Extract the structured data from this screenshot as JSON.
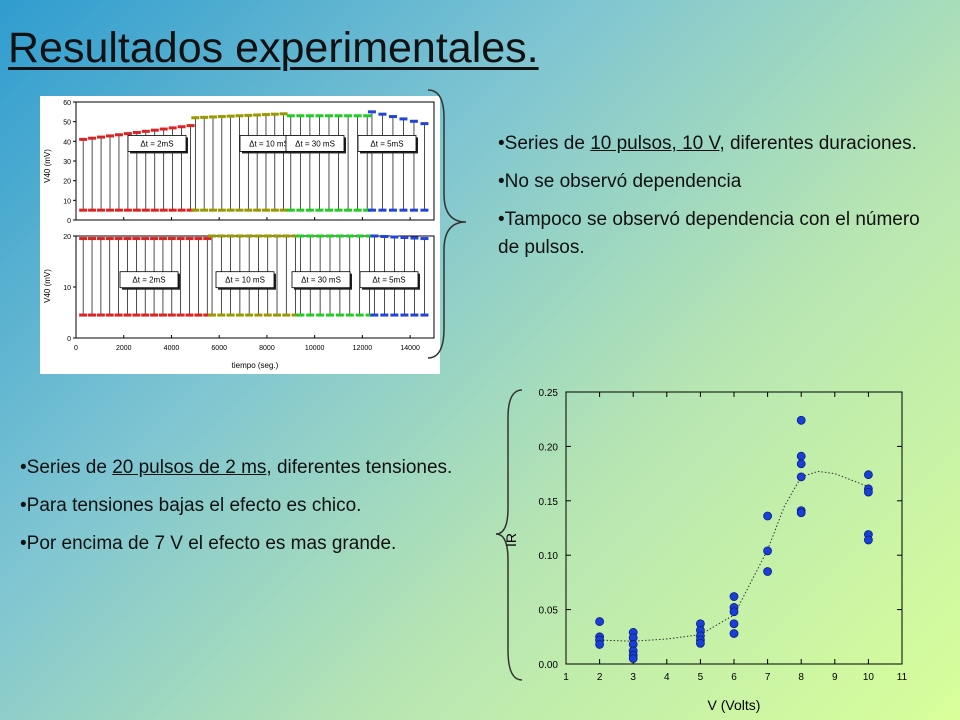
{
  "title": "Resultados experimentales.",
  "top_bullets": [
    {
      "prefix": "•Series de ",
      "underlined": "10 pulsos, 10 V",
      "suffix": ", diferentes duraciones."
    },
    {
      "text": "•No se observó dependencia"
    },
    {
      "text": "•Tampoco se observó dependencia con el número de pulsos."
    }
  ],
  "bottom_bullets": [
    {
      "prefix": "•Series de ",
      "underlined": "20 pulsos de 2 ms",
      "suffix": ", diferentes tensiones."
    },
    {
      "text": "•Para tensiones bajas el efecto es chico."
    },
    {
      "text": "•Por encima de 7 V el efecto es mas grande."
    }
  ],
  "chart_data": [
    {
      "type": "scatter",
      "xlabel": "tiempo (seg.)",
      "panels": [
        {
          "ylabel": "V40 (mV)",
          "ylim": [
            0,
            60
          ],
          "yticks": [
            0,
            10,
            20,
            30,
            40,
            50,
            60
          ],
          "annotations": [
            "Δt = 2mS",
            "Δt = 10 mS",
            "Δt = 30 mS",
            "Δt = 5mS"
          ],
          "segments": [
            {
              "name": "Δt = 2mS",
              "color": "#dd2222",
              "x_range": [
                300,
                4800
              ],
              "high": [
                41,
                48
              ],
              "low": 5
            },
            {
              "name": "Δt = 10 mS",
              "color": "#999900",
              "x_range": [
                5000,
                8700
              ],
              "high": [
                52,
                54
              ],
              "low": 5
            },
            {
              "name": "Δt = 30 mS",
              "color": "#22cc22",
              "x_range": [
                9000,
                12200
              ],
              "high": [
                53,
                53
              ],
              "low": 5
            },
            {
              "name": "Δt = 5mS",
              "color": "#2244dd",
              "x_range": [
                12400,
                14600
              ],
              "high": [
                55,
                49
              ],
              "low": 5
            }
          ]
        },
        {
          "ylabel": "V40 (mV)",
          "ylim": [
            0,
            20
          ],
          "yticks": [
            0,
            10,
            20
          ],
          "annotations": [
            "Δt = 2mS",
            "Δt = 10 mS",
            "Δt = 30 mS",
            "Δt = 5mS"
          ],
          "segments": [
            {
              "name": "Δt = 2mS",
              "color": "#dd2222",
              "x_range": [
                300,
                5500
              ],
              "high": [
                19.5,
                19.5
              ],
              "low": 4.5
            },
            {
              "name": "Δt = 10 mS",
              "color": "#999900",
              "x_range": [
                5700,
                9200
              ],
              "high": [
                20,
                20
              ],
              "low": 4.5
            },
            {
              "name": "Δt = 30 mS",
              "color": "#22cc22",
              "x_range": [
                9400,
                12300
              ],
              "high": [
                20,
                20
              ],
              "low": 4.5
            },
            {
              "name": "Δt = 5mS",
              "color": "#2244dd",
              "x_range": [
                12500,
                14600
              ],
              "high": [
                20,
                19.5
              ],
              "low": 4.5
            }
          ]
        }
      ],
      "xlim": [
        0,
        15000
      ],
      "xticks": [
        0,
        2000,
        4000,
        6000,
        8000,
        10000,
        12000,
        14000
      ]
    },
    {
      "type": "scatter",
      "xlabel": "V (Volts)",
      "ylabel": "IR",
      "xlim": [
        1,
        11
      ],
      "ylim": [
        0,
        0.25
      ],
      "xticks": [
        1,
        2,
        3,
        4,
        5,
        6,
        7,
        8,
        9,
        10,
        11
      ],
      "yticks": [
        "0.00",
        "0.05",
        "0.10",
        "0.15",
        "0.20",
        "0.25"
      ],
      "points": [
        [
          2,
          0.039
        ],
        [
          2,
          0.025
        ],
        [
          2,
          0.022
        ],
        [
          2,
          0.018
        ],
        [
          3,
          0.029
        ],
        [
          3,
          0.024
        ],
        [
          3,
          0.018
        ],
        [
          3,
          0.012
        ],
        [
          3,
          0.008
        ],
        [
          3,
          0.005
        ],
        [
          5,
          0.037
        ],
        [
          5,
          0.031
        ],
        [
          5,
          0.026
        ],
        [
          5,
          0.022
        ],
        [
          5,
          0.019
        ],
        [
          6,
          0.062
        ],
        [
          6,
          0.052
        ],
        [
          6,
          0.048
        ],
        [
          6,
          0.037
        ],
        [
          6,
          0.028
        ],
        [
          7,
          0.136
        ],
        [
          7,
          0.104
        ],
        [
          7,
          0.085
        ],
        [
          8,
          0.224
        ],
        [
          8,
          0.191
        ],
        [
          8,
          0.184
        ],
        [
          8,
          0.172
        ],
        [
          8,
          0.141
        ],
        [
          8,
          0.139
        ],
        [
          10,
          0.174
        ],
        [
          10,
          0.161
        ],
        [
          10,
          0.158
        ],
        [
          10,
          0.119
        ],
        [
          10,
          0.114
        ]
      ],
      "trend": [
        [
          2,
          0.022
        ],
        [
          3,
          0.021
        ],
        [
          4,
          0.023
        ],
        [
          5,
          0.027
        ],
        [
          6,
          0.045
        ],
        [
          7,
          0.105
        ],
        [
          7.5,
          0.145
        ],
        [
          8,
          0.172
        ],
        [
          8.5,
          0.177
        ],
        [
          9,
          0.175
        ],
        [
          10,
          0.163
        ]
      ]
    }
  ]
}
